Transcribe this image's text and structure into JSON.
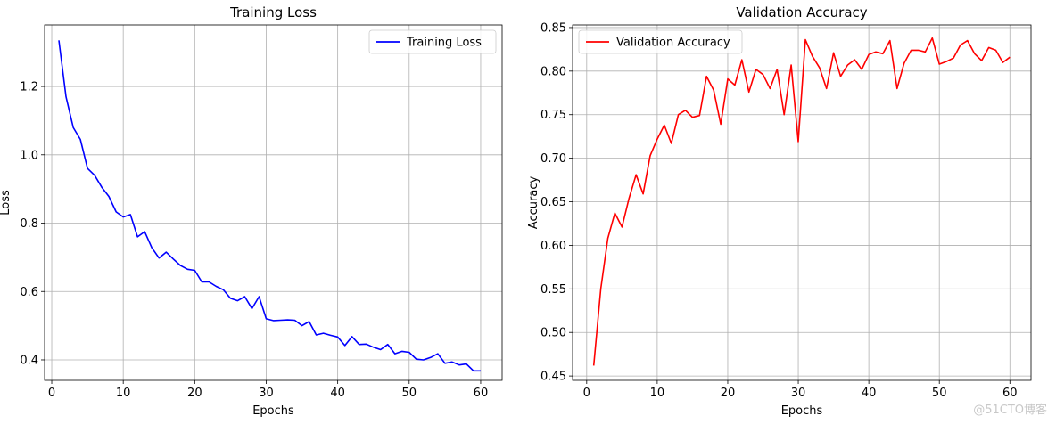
{
  "watermark": "@51CTO博客",
  "chart_data": [
    {
      "type": "line",
      "title": "Training Loss",
      "xlabel": "Epochs",
      "ylabel": "Loss",
      "xlim": [
        -1,
        63
      ],
      "ylim": [
        0.34,
        1.38
      ],
      "xticks": [
        0,
        10,
        20,
        30,
        40,
        50,
        60
      ],
      "yticks": [
        0.4,
        0.6,
        0.8,
        1.0,
        1.2
      ],
      "ytick_labels": [
        "0.4",
        "0.6",
        "0.8",
        "1.0",
        "1.2"
      ],
      "grid": true,
      "legend_position": "top-right",
      "series": [
        {
          "name": "Training Loss",
          "color": "#0000ff",
          "x": [
            1,
            2,
            3,
            4,
            5,
            6,
            7,
            8,
            9,
            10,
            11,
            12,
            13,
            14,
            15,
            16,
            17,
            18,
            19,
            20,
            21,
            22,
            23,
            24,
            25,
            26,
            27,
            28,
            29,
            30,
            31,
            32,
            33,
            34,
            35,
            36,
            37,
            38,
            39,
            40,
            41,
            42,
            43,
            44,
            45,
            46,
            47,
            48,
            49,
            50,
            51,
            52,
            53,
            54,
            55,
            56,
            57,
            58,
            59,
            60
          ],
          "values": [
            1.335,
            1.17,
            1.08,
            1.045,
            0.96,
            0.94,
            0.905,
            0.878,
            0.833,
            0.818,
            0.825,
            0.76,
            0.775,
            0.728,
            0.698,
            0.715,
            0.695,
            0.676,
            0.665,
            0.662,
            0.628,
            0.628,
            0.615,
            0.605,
            0.58,
            0.573,
            0.585,
            0.55,
            0.585,
            0.52,
            0.515,
            0.516,
            0.517,
            0.516,
            0.5,
            0.512,
            0.473,
            0.478,
            0.472,
            0.467,
            0.442,
            0.468,
            0.445,
            0.446,
            0.437,
            0.43,
            0.445,
            0.418,
            0.425,
            0.422,
            0.402,
            0.4,
            0.407,
            0.418,
            0.39,
            0.394,
            0.385,
            0.388,
            0.368,
            0.368
          ]
        }
      ]
    },
    {
      "type": "line",
      "title": "Validation Accuracy",
      "xlabel": "Epochs",
      "ylabel": "Accuracy",
      "xlim": [
        -2,
        63
      ],
      "ylim": [
        0.445,
        0.853
      ],
      "xticks": [
        0,
        10,
        20,
        30,
        40,
        50,
        60
      ],
      "yticks": [
        0.45,
        0.5,
        0.55,
        0.6,
        0.65,
        0.7,
        0.75,
        0.8,
        0.85
      ],
      "ytick_labels": [
        "0.45",
        "0.50",
        "0.55",
        "0.60",
        "0.65",
        "0.70",
        "0.75",
        "0.80",
        "0.85"
      ],
      "grid": true,
      "legend_position": "top-left",
      "series": [
        {
          "name": "Validation Accuracy",
          "color": "#ff0000",
          "x": [
            1,
            2,
            3,
            4,
            5,
            6,
            7,
            8,
            9,
            10,
            11,
            12,
            13,
            14,
            15,
            16,
            17,
            18,
            19,
            20,
            21,
            22,
            23,
            24,
            25,
            26,
            27,
            28,
            29,
            30,
            31,
            32,
            33,
            34,
            35,
            36,
            37,
            38,
            39,
            40,
            41,
            42,
            43,
            44,
            45,
            46,
            47,
            48,
            49,
            50,
            51,
            52,
            53,
            54,
            55,
            56,
            57,
            58,
            59,
            60
          ],
          "values": [
            0.462,
            0.55,
            0.608,
            0.637,
            0.621,
            0.654,
            0.681,
            0.659,
            0.703,
            0.722,
            0.738,
            0.717,
            0.75,
            0.755,
            0.747,
            0.749,
            0.794,
            0.778,
            0.739,
            0.791,
            0.784,
            0.813,
            0.776,
            0.802,
            0.796,
            0.78,
            0.802,
            0.75,
            0.807,
            0.719,
            0.836,
            0.817,
            0.804,
            0.78,
            0.821,
            0.794,
            0.807,
            0.813,
            0.802,
            0.819,
            0.822,
            0.82,
            0.835,
            0.78,
            0.809,
            0.824,
            0.824,
            0.822,
            0.838,
            0.808,
            0.811,
            0.815,
            0.83,
            0.835,
            0.82,
            0.812,
            0.827,
            0.824,
            0.81,
            0.816
          ]
        }
      ]
    }
  ]
}
